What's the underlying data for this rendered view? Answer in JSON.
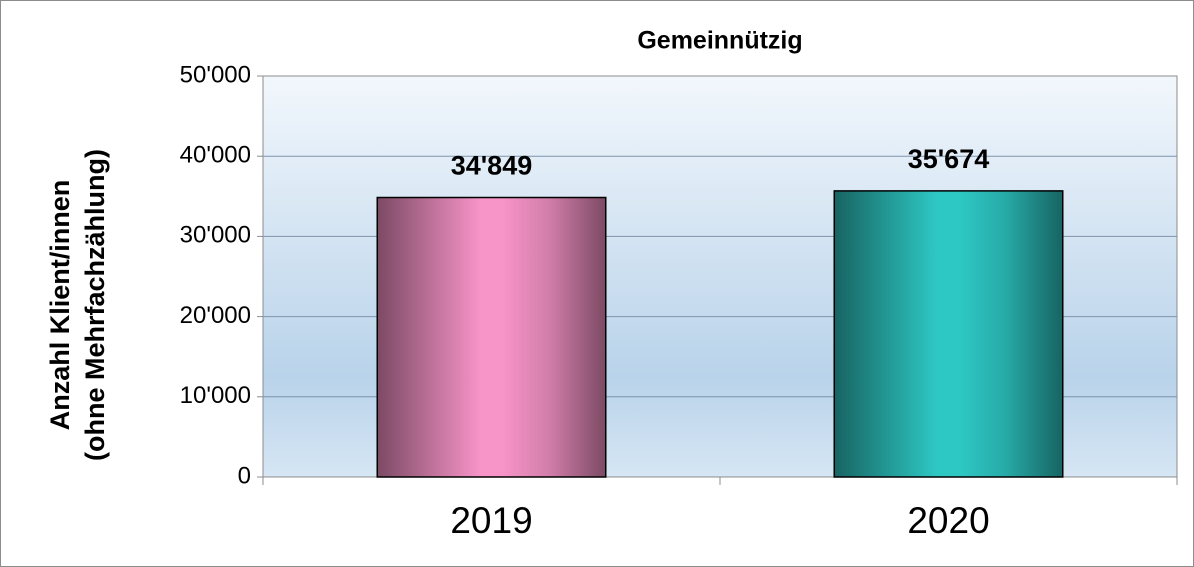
{
  "chart_data": {
    "type": "bar",
    "title": "Gemeinnützig",
    "ylabel": [
      "Anzahl Klient/innen",
      "(ohne Mehrfachzählung)"
    ],
    "categories": [
      "2019",
      "2020"
    ],
    "values": [
      34849,
      35674
    ],
    "value_labels": [
      "34'849",
      "35'674"
    ],
    "colors": [
      "#f794c8",
      "#2ec8c4"
    ],
    "ylim": [
      0,
      50000
    ],
    "yticks": [
      0,
      {
        "value": 10000,
        "label": "10'000"
      },
      {
        "value": 20000,
        "label": "20'000"
      },
      {
        "value": 30000,
        "label": "30'000"
      },
      {
        "value": 40000,
        "label": "40'000"
      },
      {
        "value": 50000,
        "label": "50'000"
      }
    ],
    "grid": true
  }
}
